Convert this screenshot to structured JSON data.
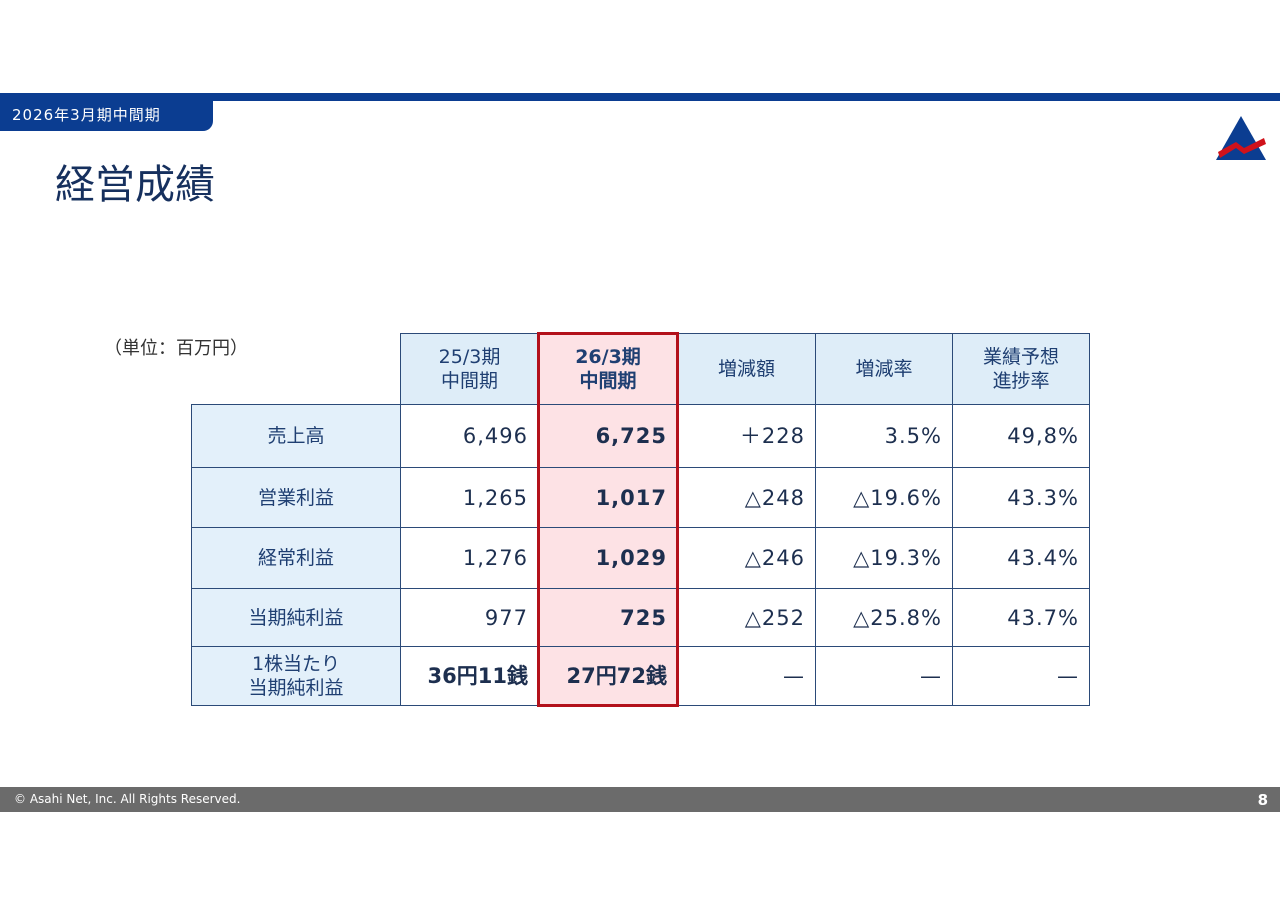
{
  "header": {
    "period": "2026年3月期中間期",
    "title": "経営成績"
  },
  "table": {
    "unit": "（単位：百万円）",
    "columns": [
      [
        "25/3期",
        "中間期"
      ],
      [
        "26/3期",
        "中間期"
      ],
      [
        "増減額"
      ],
      [
        "増減率"
      ],
      [
        "業績予想",
        "進捗率"
      ]
    ],
    "rows": [
      {
        "label": [
          "売上高"
        ],
        "cells": [
          "6,496",
          "6,725",
          "＋228",
          "3.5%",
          "49,8%"
        ]
      },
      {
        "label": [
          "営業利益"
        ],
        "cells": [
          "1,265",
          "1,017",
          "△248",
          "△19.6%",
          "43.3%"
        ]
      },
      {
        "label": [
          "経常利益"
        ],
        "cells": [
          "1,276",
          "1,029",
          "△246",
          "△19.3%",
          "43.4%"
        ]
      },
      {
        "label": [
          "当期純利益"
        ],
        "cells": [
          "977",
          "725",
          "△252",
          "△25.8%",
          "43.7%"
        ]
      },
      {
        "label": [
          "1株当たり",
          "当期純利益"
        ],
        "cells": [
          "36円11銭",
          "27円72銭",
          "—",
          "—",
          "—"
        ]
      }
    ]
  },
  "footer": {
    "copyright": "© Asahi Net, Inc. All Rights Reserved.",
    "page": "8"
  }
}
